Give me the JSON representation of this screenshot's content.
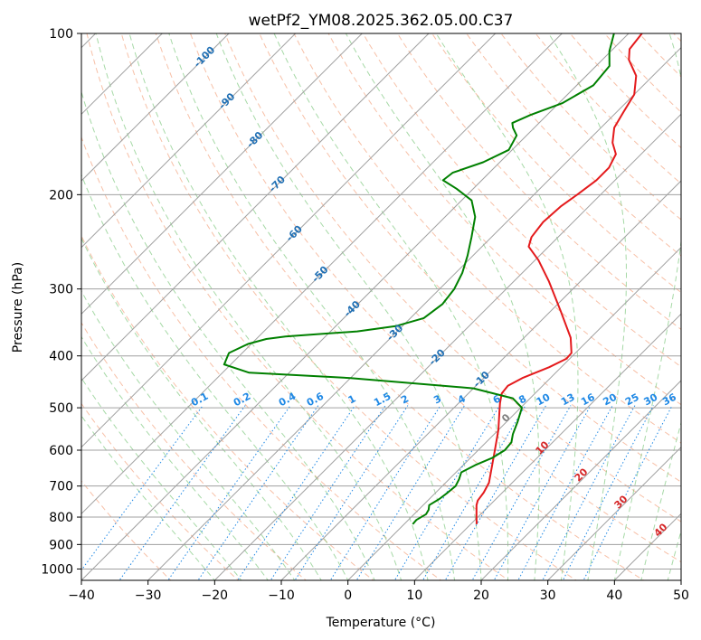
{
  "chart_data": {
    "type": "line",
    "subtype": "skew-T log-P diagram",
    "title": "wetPf2_YM08.2025.362.05.00.C37",
    "xlabel": "Temperature (°C)",
    "ylabel": "Pressure (hPa)",
    "xlim": [
      -40,
      50
    ],
    "ylim": [
      1050,
      100
    ],
    "y_scale": "log",
    "grid": true,
    "x_ticks": [
      -40,
      -30,
      -20,
      -10,
      0,
      10,
      20,
      30,
      40,
      50
    ],
    "x_tick_labels": [
      "−40",
      "−30",
      "−20",
      "−10",
      "0",
      "10",
      "20",
      "30",
      "40",
      "50"
    ],
    "y_ticks": [
      100,
      200,
      300,
      400,
      500,
      600,
      700,
      800,
      900,
      1000
    ],
    "y_tick_labels": [
      "100",
      "200",
      "300",
      "400",
      "500",
      "600",
      "700",
      "800",
      "900",
      "1000"
    ],
    "colors": {
      "temperature": "#e41a1c",
      "dewpoint": "#008000",
      "isotherm_labels": "#1f6fb4",
      "mixing_ratio": "#1e88e5",
      "moist_adiabat_labels": "#d62728",
      "freezing_label": "#808080"
    },
    "series": [
      {
        "color": "#e41a1c",
        "points": [
          {
            "p": 825,
            "t": 10.9
          },
          {
            "p": 800,
            "t": 9.8
          },
          {
            "p": 760,
            "t": 8.0
          },
          {
            "p": 745,
            "t": 7.5
          },
          {
            "p": 720,
            "t": 7.2
          },
          {
            "p": 690,
            "t": 6.5
          },
          {
            "p": 650,
            "t": 4.8
          },
          {
            "p": 600,
            "t": 2.5
          },
          {
            "p": 550,
            "t": 0.0
          },
          {
            "p": 510,
            "t": -2.5
          },
          {
            "p": 490,
            "t": -3.8
          },
          {
            "p": 470,
            "t": -5.0
          },
          {
            "p": 455,
            "t": -5.2
          },
          {
            "p": 440,
            "t": -4.2
          },
          {
            "p": 420,
            "t": -1.8
          },
          {
            "p": 405,
            "t": -0.5
          },
          {
            "p": 395,
            "t": -0.6
          },
          {
            "p": 370,
            "t": -3.0
          },
          {
            "p": 330,
            "t": -8.5
          },
          {
            "p": 290,
            "t": -14.8
          },
          {
            "p": 265,
            "t": -19.5
          },
          {
            "p": 250,
            "t": -23.0
          },
          {
            "p": 240,
            "t": -24.0
          },
          {
            "p": 225,
            "t": -24.5
          },
          {
            "p": 210,
            "t": -24.2
          },
          {
            "p": 200,
            "t": -23.5
          },
          {
            "p": 188,
            "t": -22.8
          },
          {
            "p": 178,
            "t": -22.8
          },
          {
            "p": 168,
            "t": -23.8
          },
          {
            "p": 160,
            "t": -26.0
          },
          {
            "p": 150,
            "t": -28.0
          },
          {
            "p": 140,
            "t": -29.0
          },
          {
            "p": 130,
            "t": -30.0
          },
          {
            "p": 120,
            "t": -32.5
          },
          {
            "p": 112,
            "t": -36.0
          },
          {
            "p": 107,
            "t": -37.5
          },
          {
            "p": 100,
            "t": -38.0
          }
        ]
      },
      {
        "color": "#008000",
        "points": [
          {
            "p": 825,
            "t": 1.3
          },
          {
            "p": 810,
            "t": 1.2
          },
          {
            "p": 790,
            "t": 1.8
          },
          {
            "p": 775,
            "t": 1.5
          },
          {
            "p": 760,
            "t": 0.9
          },
          {
            "p": 740,
            "t": 1.5
          },
          {
            "p": 720,
            "t": 1.8
          },
          {
            "p": 700,
            "t": 2.0
          },
          {
            "p": 680,
            "t": 1.5
          },
          {
            "p": 660,
            "t": 0.8
          },
          {
            "p": 640,
            "t": 1.8
          },
          {
            "p": 620,
            "t": 3.3
          },
          {
            "p": 600,
            "t": 4.0
          },
          {
            "p": 580,
            "t": 3.8
          },
          {
            "p": 560,
            "t": 2.8
          },
          {
            "p": 530,
            "t": 1.6
          },
          {
            "p": 500,
            "t": 0.2
          },
          {
            "p": 480,
            "t": -2.6
          },
          {
            "p": 460,
            "t": -10.0
          },
          {
            "p": 440,
            "t": -30.0
          },
          {
            "p": 430,
            "t": -46.0
          },
          {
            "p": 415,
            "t": -51.0
          },
          {
            "p": 395,
            "t": -52.0
          },
          {
            "p": 380,
            "t": -50.5
          },
          {
            "p": 372,
            "t": -48.5
          },
          {
            "p": 368,
            "t": -46.0
          },
          {
            "p": 364,
            "t": -41.0
          },
          {
            "p": 360,
            "t": -36.0
          },
          {
            "p": 352,
            "t": -31.0
          },
          {
            "p": 340,
            "t": -28.0
          },
          {
            "p": 320,
            "t": -27.3
          },
          {
            "p": 300,
            "t": -27.8
          },
          {
            "p": 280,
            "t": -29.0
          },
          {
            "p": 260,
            "t": -30.8
          },
          {
            "p": 240,
            "t": -33.0
          },
          {
            "p": 220,
            "t": -35.5
          },
          {
            "p": 205,
            "t": -38.5
          },
          {
            "p": 195,
            "t": -42.5
          },
          {
            "p": 188,
            "t": -45.8
          },
          {
            "p": 182,
            "t": -45.5
          },
          {
            "p": 174,
            "t": -42.5
          },
          {
            "p": 165,
            "t": -40.5
          },
          {
            "p": 155,
            "t": -41.5
          },
          {
            "p": 150,
            "t": -43.2
          },
          {
            "p": 147,
            "t": -44.0
          },
          {
            "p": 142,
            "t": -42.5
          },
          {
            "p": 135,
            "t": -39.5
          },
          {
            "p": 125,
            "t": -37.5
          },
          {
            "p": 115,
            "t": -38.0
          },
          {
            "p": 108,
            "t": -40.2
          },
          {
            "p": 100,
            "t": -42.2
          }
        ]
      }
    ],
    "isotherm_labels": [
      "-100",
      "-90",
      "-80",
      "-70",
      "-60",
      "-50",
      "-40",
      "-30",
      "-20",
      "-10"
    ],
    "mixing_ratio_labels": [
      "0.1",
      "0.2",
      "0.4",
      "0.6",
      "1",
      "1.5",
      "2",
      "3",
      "4",
      "6",
      "8",
      "10",
      "13",
      "16",
      "20",
      "25",
      "30",
      "36"
    ],
    "moist_adiabat_labels": [
      "0",
      "10",
      "20",
      "30",
      "40"
    ]
  }
}
